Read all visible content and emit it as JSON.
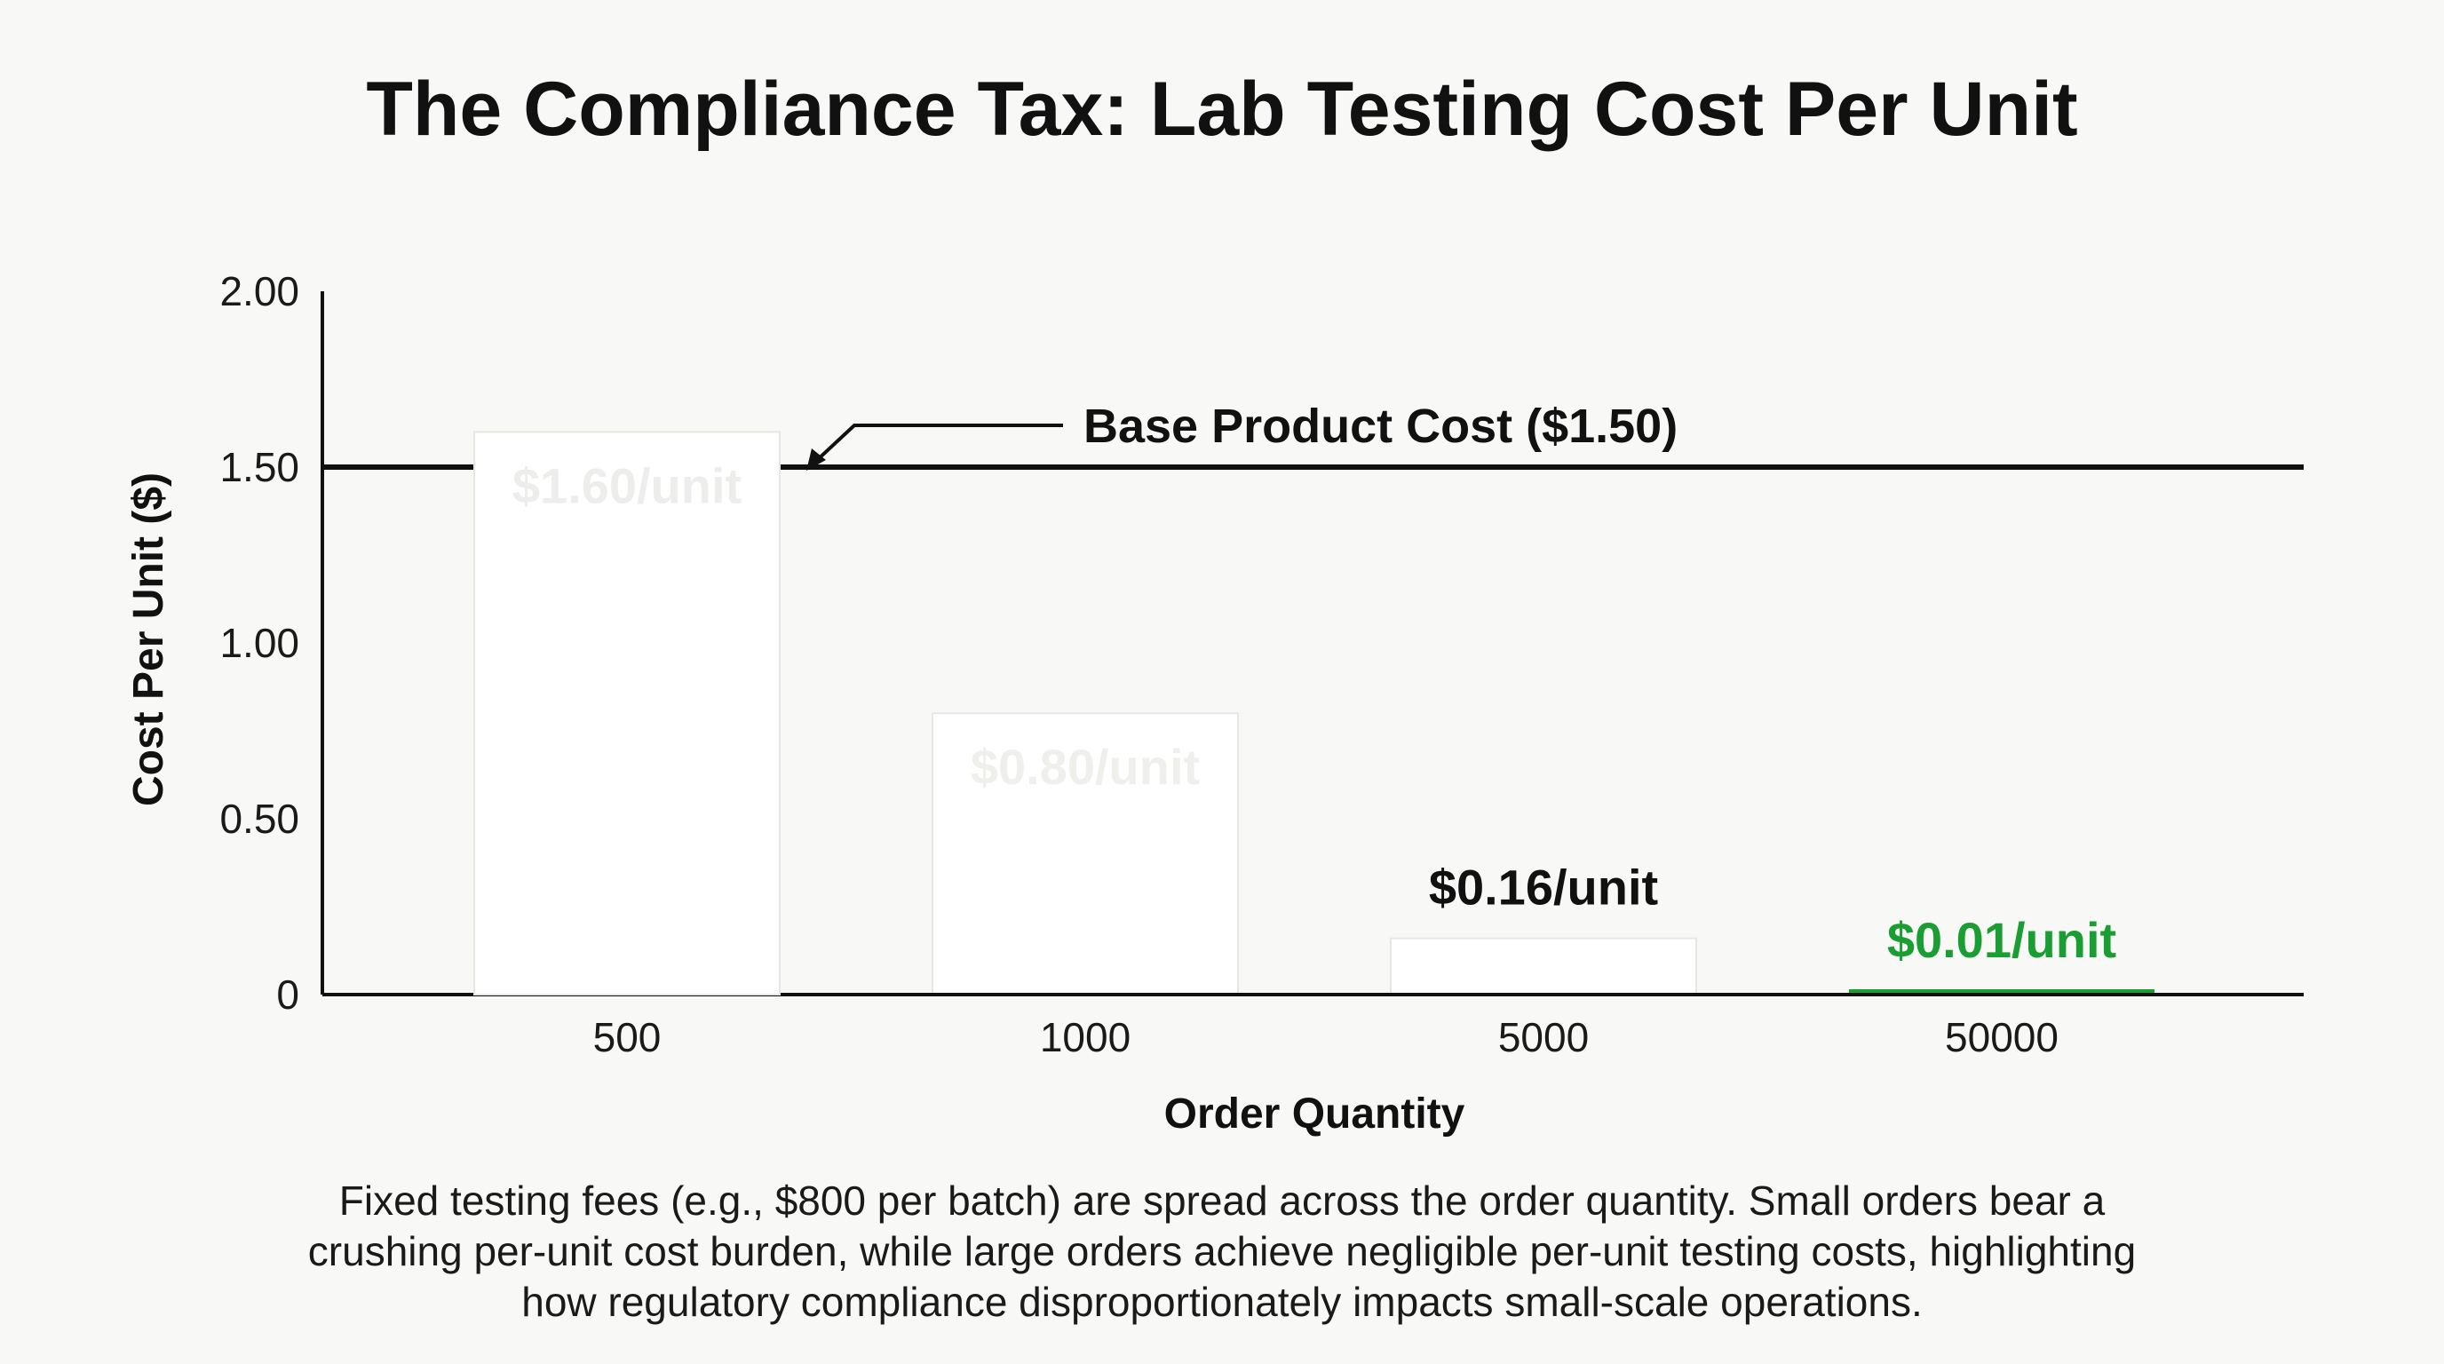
{
  "chart_data": {
    "type": "bar",
    "title": "The Compliance Tax: Lab Testing Cost Per Unit",
    "xlabel": "Order Quantity",
    "ylabel": "Cost Per Unit ($)",
    "categories": [
      "500",
      "1000",
      "5000",
      "50000"
    ],
    "values": [
      1.6,
      0.8,
      0.16,
      0.01
    ],
    "data_labels": [
      "$1.60/unit",
      "$0.80/unit",
      "$0.16/unit",
      "$0.01/unit"
    ],
    "ylim": [
      0,
      2.0
    ],
    "yticks": [
      0,
      0.5,
      1.0,
      1.5,
      2.0
    ],
    "ytick_labels": [
      "0",
      "0.50",
      "1.00",
      "1.50",
      "2.00"
    ],
    "grid": false,
    "bar_colors": [
      "#ffffff",
      "#ffffff",
      "#ffffff",
      "#1a9e34"
    ],
    "data_label_colors": [
      "#ededeb",
      "#efefec",
      "#111111",
      "#1a9e34"
    ],
    "reference_line": {
      "value": 1.5,
      "label": "Base Product Cost ($1.50)",
      "color": "#111111"
    },
    "caption": [
      "Fixed testing fees (e.g., $800 per batch) are spread across the order quantity. Small orders bear a",
      "crushing per-unit cost burden, while large orders achieve negligible per-unit testing costs, highlighting",
      "how regulatory compliance disproportionately impacts small-scale operations."
    ]
  }
}
